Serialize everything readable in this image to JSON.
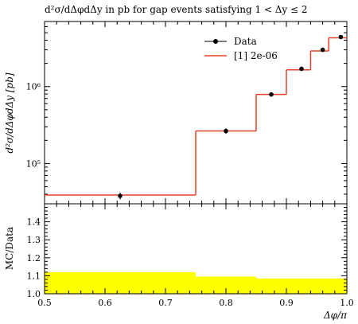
{
  "chart_data": {
    "title": "d²σ/dΔφdΔy in pb for gap events satisfying 1 < Δy ≤ 2",
    "type": "line",
    "main": {
      "ylabel": "d²σ/dΔφdΔy [pb]",
      "yscale": "log",
      "ylim": [
        30000,
        7000000
      ],
      "y_tick_labels": [
        {
          "value": 100000,
          "label": "10⁵"
        },
        {
          "value": 1000000,
          "label": "10⁶"
        }
      ],
      "series": [
        {
          "name": "Data",
          "style": "points-with-errorbars",
          "points": [
            {
              "x": 0.625,
              "y": 38000,
              "err": 4000
            },
            {
              "x": 0.8,
              "y": 265000,
              "err": 22000
            },
            {
              "x": 0.875,
              "y": 790000,
              "err": 50000
            },
            {
              "x": 0.925,
              "y": 1700000,
              "err": 100000
            },
            {
              "x": 0.96,
              "y": 3000000,
              "err": 180000
            },
            {
              "x": 0.99,
              "y": 4400000,
              "err": 250000
            }
          ]
        },
        {
          "name": "[1] 2e-06",
          "style": "step",
          "color": "#e8402a",
          "bins": [
            {
              "x0": 0.5,
              "x1": 0.75,
              "y": 39000
            },
            {
              "x0": 0.75,
              "x1": 0.85,
              "y": 265000
            },
            {
              "x0": 0.85,
              "x1": 0.9,
              "y": 790000
            },
            {
              "x0": 0.9,
              "x1": 0.94,
              "y": 1650000
            },
            {
              "x0": 0.94,
              "x1": 0.97,
              "y": 2900000
            },
            {
              "x0": 0.97,
              "x1": 1.0,
              "y": 4300000
            }
          ]
        }
      ]
    },
    "ratio": {
      "ylabel": "MC/Data",
      "ylim": [
        1.0,
        1.5
      ],
      "y_ticks": [
        1.0,
        1.1,
        1.2,
        1.3,
        1.4
      ],
      "y_tick_labels": [
        "1.0",
        "1.1",
        "1.2",
        "1.3",
        "1.4"
      ],
      "band_color": "#ffff00",
      "band": [
        {
          "x0": 0.5,
          "x1": 0.75,
          "lo": 1.0,
          "hi": 1.12
        },
        {
          "x0": 0.75,
          "x1": 0.85,
          "lo": 1.0,
          "hi": 1.095
        },
        {
          "x0": 0.85,
          "x1": 1.0,
          "lo": 1.0,
          "hi": 1.085
        }
      ]
    },
    "xlabel": "Δφ/π",
    "xlim": [
      0.5,
      1.0
    ],
    "x_ticks": [
      0.5,
      0.6,
      0.7,
      0.8,
      0.9,
      1.0
    ],
    "x_tick_labels": [
      "0.5",
      "0.6",
      "0.7",
      "0.8",
      "0.9",
      "1.0"
    ],
    "legend": {
      "position": "top-right",
      "entries": [
        {
          "label": "Data",
          "marker": "point"
        },
        {
          "label": "[1] 2e-06",
          "marker": "line",
          "color": "#e8402a"
        }
      ]
    }
  }
}
